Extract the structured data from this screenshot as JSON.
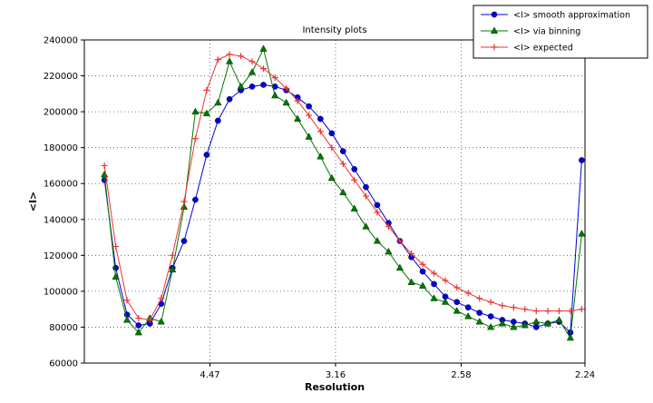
{
  "figure": {
    "title": "Intensity plots",
    "xlabel": "Resolution",
    "ylabel": "<I>"
  },
  "chart_data": {
    "type": "line",
    "title": "Intensity plots",
    "xlabel": "Resolution",
    "ylabel": "<I>",
    "grid": "dotted",
    "legend_position": "upper-right-outside",
    "x_axis": {
      "lim": [
        0,
        0.1993
      ],
      "ticks": [
        {
          "pos": 0.05,
          "label": "4.47"
        },
        {
          "pos": 0.1,
          "label": "3.16"
        },
        {
          "pos": 0.15,
          "label": "2.58"
        },
        {
          "pos": 0.1993,
          "label": "2.24"
        }
      ]
    },
    "y_axis": {
      "lim": [
        60000,
        240000
      ],
      "ticks": [
        60000,
        80000,
        100000,
        120000,
        140000,
        160000,
        180000,
        200000,
        220000,
        240000
      ]
    },
    "x": [
      0.008,
      0.0125,
      0.017,
      0.0216,
      0.0261,
      0.0306,
      0.0351,
      0.0397,
      0.0442,
      0.0487,
      0.0532,
      0.0578,
      0.0623,
      0.0668,
      0.0713,
      0.0759,
      0.0804,
      0.0849,
      0.0894,
      0.094,
      0.0985,
      0.103,
      0.1075,
      0.1121,
      0.1166,
      0.1211,
      0.1256,
      0.1302,
      0.1347,
      0.1392,
      0.1437,
      0.1483,
      0.1528,
      0.1573,
      0.1618,
      0.1664,
      0.1709,
      0.1754,
      0.1799,
      0.1845,
      0.189,
      0.1935,
      0.198
    ],
    "series": [
      {
        "id": "smooth",
        "name": "<I> smooth approximation",
        "color": "#0000dd",
        "marker": "circle",
        "values": [
          162000,
          113000,
          87000,
          81000,
          82000,
          93000,
          113000,
          128000,
          151000,
          176000,
          195000,
          207000,
          212000,
          214000,
          215000,
          214000,
          212000,
          208000,
          203000,
          196000,
          188000,
          178000,
          168000,
          158000,
          148000,
          138000,
          128000,
          119000,
          111000,
          104000,
          97000,
          94000,
          91000,
          88000,
          86000,
          84000,
          83000,
          82000,
          80000,
          82000,
          83000,
          77000,
          173000
        ]
      },
      {
        "id": "binning",
        "name": "<I> via binning",
        "color": "#007700",
        "marker": "triangle",
        "values": [
          165000,
          108000,
          84000,
          77000,
          85000,
          83000,
          112000,
          147000,
          200000,
          199000,
          205000,
          228000,
          214000,
          222000,
          235000,
          209000,
          205000,
          196000,
          186000,
          175000,
          163000,
          155000,
          146000,
          136000,
          128000,
          122000,
          113000,
          105000,
          103000,
          96000,
          94000,
          89000,
          86000,
          83000,
          80000,
          82000,
          80000,
          81000,
          83000,
          82000,
          84000,
          74000,
          132000
        ]
      },
      {
        "id": "expected",
        "name": "<I> expected",
        "color": "#ee3333",
        "marker": "plus",
        "values": [
          170000,
          125000,
          95000,
          85000,
          84000,
          96000,
          120000,
          150000,
          185000,
          212000,
          229000,
          232000,
          231000,
          228000,
          224000,
          219000,
          213000,
          206000,
          198000,
          189000,
          180000,
          171000,
          162000,
          153000,
          144000,
          136000,
          128000,
          121000,
          115000,
          110000,
          106000,
          102000,
          99000,
          96000,
          94000,
          92000,
          91000,
          90000,
          89000,
          89000,
          89000,
          89000,
          90000
        ]
      }
    ]
  }
}
